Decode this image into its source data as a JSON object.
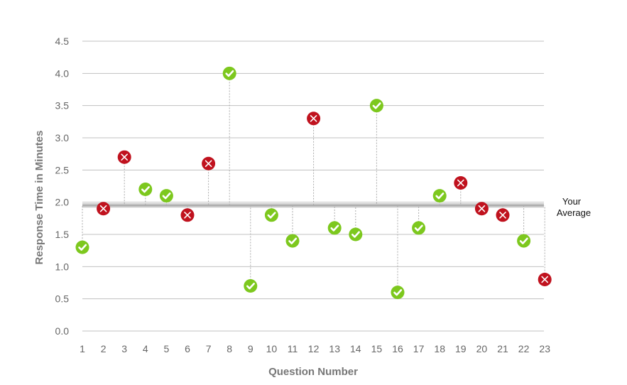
{
  "chart_data": {
    "type": "scatter",
    "xlabel": "Question Number",
    "ylabel": "Response Time in Minutes",
    "ylim": [
      0,
      4.5
    ],
    "yticks": [
      "0.0",
      "0.5",
      "1.0",
      "1.5",
      "2.0",
      "2.5",
      "3.0",
      "3.5",
      "4.0",
      "4.5"
    ],
    "x": [
      1,
      2,
      3,
      4,
      5,
      6,
      7,
      8,
      9,
      10,
      11,
      12,
      13,
      14,
      15,
      16,
      17,
      18,
      19,
      20,
      21,
      22,
      23
    ],
    "values": [
      1.3,
      1.9,
      2.7,
      2.2,
      2.1,
      1.8,
      2.6,
      4.0,
      0.7,
      1.8,
      1.4,
      3.3,
      1.6,
      1.5,
      3.5,
      0.6,
      1.6,
      2.1,
      2.3,
      1.9,
      1.8,
      1.4,
      0.8
    ],
    "correct": [
      true,
      false,
      false,
      true,
      true,
      false,
      false,
      true,
      true,
      true,
      true,
      false,
      true,
      true,
      true,
      true,
      true,
      true,
      false,
      false,
      false,
      true,
      false
    ],
    "average": 1.95,
    "average_label_line1": "Your",
    "average_label_line2": "Average",
    "grid": true,
    "colors": {
      "correct": "#7dc81e",
      "incorrect": "#c0121e",
      "average_line": "#c8c8c8",
      "grid": "#c0c0c0",
      "stem": "#aaaaaa"
    },
    "marker_icons": {
      "correct": "check-icon",
      "incorrect": "x-icon"
    }
  }
}
